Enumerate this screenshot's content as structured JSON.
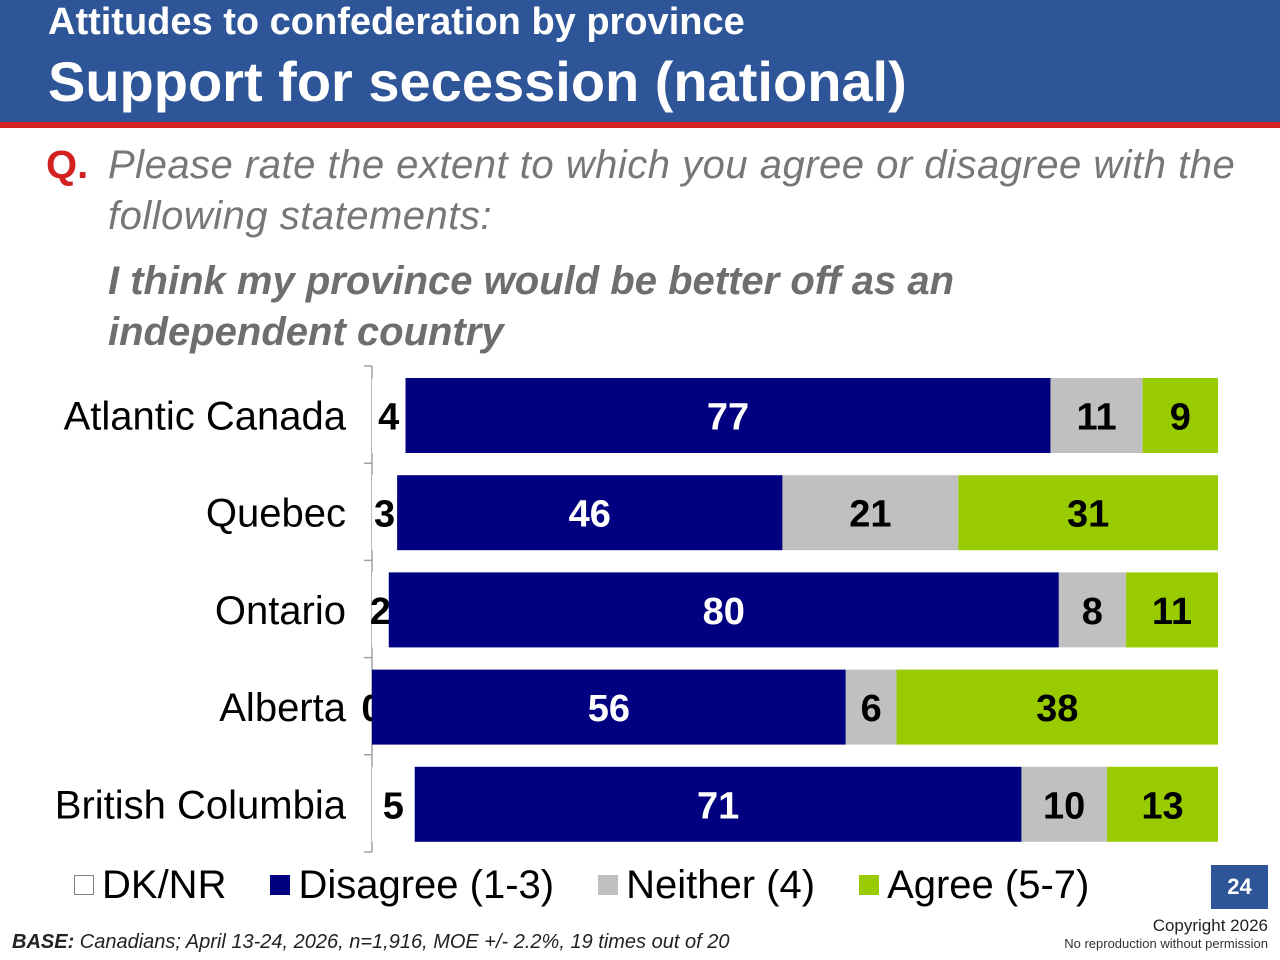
{
  "header": {
    "title_line1": "Attitudes to confederation by province",
    "title_line2": "Support for secession (national)"
  },
  "question": {
    "marker": "Q.",
    "text": "Please rate the extent to which you agree or disagree with the following statements:",
    "statement": "I think my province would be better off as an independent country"
  },
  "chart_data": {
    "type": "bar",
    "orientation": "horizontal",
    "stacked": true,
    "categories": [
      "Atlantic Canada",
      "Quebec",
      "Ontario",
      "Alberta",
      "British Columbia"
    ],
    "series": [
      {
        "name": "DK/NR",
        "values": [
          4,
          3,
          2,
          0,
          5
        ],
        "color": "#ffffff"
      },
      {
        "name": "Disagree (1-3)",
        "values": [
          77,
          46,
          80,
          56,
          71
        ],
        "color": "#000080"
      },
      {
        "name": "Neither (4)",
        "values": [
          11,
          21,
          8,
          6,
          10
        ],
        "color": "#c0c0c0"
      },
      {
        "name": "Agree (5-7)",
        "values": [
          9,
          31,
          11,
          38,
          13
        ],
        "color": "#99cc00"
      }
    ],
    "legend_position": "bottom",
    "grid": false
  },
  "footer": {
    "base_label": "BASE:",
    "base_text": " Canadians; April 13-24, 2026, n=1,916, MOE +/- 2.2%, 19 times out of 20",
    "copyright": "Copyright 2026",
    "no_reproduction": "No reproduction without permission",
    "page_number": "24"
  }
}
